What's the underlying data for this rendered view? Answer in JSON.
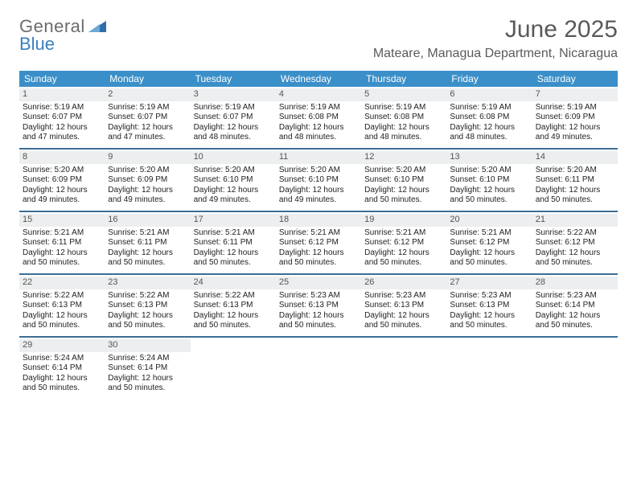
{
  "brand": {
    "first": "General",
    "second": "Blue"
  },
  "title": "June 2025",
  "location": "Mateare, Managua Department, Nicaragua",
  "colors": {
    "header_bg": "#3b8fc8",
    "rule": "#3a6d95",
    "daynum_bg": "#eceeef",
    "text": "#333333",
    "logo_gray": "#6c6c6c",
    "logo_blue": "#3a7fbf"
  },
  "day_names": [
    "Sunday",
    "Monday",
    "Tuesday",
    "Wednesday",
    "Thursday",
    "Friday",
    "Saturday"
  ],
  "weeks": [
    [
      {
        "n": "1",
        "sunrise": "5:19 AM",
        "sunset": "6:07 PM",
        "daylight": "12 hours and 47 minutes."
      },
      {
        "n": "2",
        "sunrise": "5:19 AM",
        "sunset": "6:07 PM",
        "daylight": "12 hours and 47 minutes."
      },
      {
        "n": "3",
        "sunrise": "5:19 AM",
        "sunset": "6:07 PM",
        "daylight": "12 hours and 48 minutes."
      },
      {
        "n": "4",
        "sunrise": "5:19 AM",
        "sunset": "6:08 PM",
        "daylight": "12 hours and 48 minutes."
      },
      {
        "n": "5",
        "sunrise": "5:19 AM",
        "sunset": "6:08 PM",
        "daylight": "12 hours and 48 minutes."
      },
      {
        "n": "6",
        "sunrise": "5:19 AM",
        "sunset": "6:08 PM",
        "daylight": "12 hours and 48 minutes."
      },
      {
        "n": "7",
        "sunrise": "5:19 AM",
        "sunset": "6:09 PM",
        "daylight": "12 hours and 49 minutes."
      }
    ],
    [
      {
        "n": "8",
        "sunrise": "5:20 AM",
        "sunset": "6:09 PM",
        "daylight": "12 hours and 49 minutes."
      },
      {
        "n": "9",
        "sunrise": "5:20 AM",
        "sunset": "6:09 PM",
        "daylight": "12 hours and 49 minutes."
      },
      {
        "n": "10",
        "sunrise": "5:20 AM",
        "sunset": "6:10 PM",
        "daylight": "12 hours and 49 minutes."
      },
      {
        "n": "11",
        "sunrise": "5:20 AM",
        "sunset": "6:10 PM",
        "daylight": "12 hours and 49 minutes."
      },
      {
        "n": "12",
        "sunrise": "5:20 AM",
        "sunset": "6:10 PM",
        "daylight": "12 hours and 50 minutes."
      },
      {
        "n": "13",
        "sunrise": "5:20 AM",
        "sunset": "6:10 PM",
        "daylight": "12 hours and 50 minutes."
      },
      {
        "n": "14",
        "sunrise": "5:20 AM",
        "sunset": "6:11 PM",
        "daylight": "12 hours and 50 minutes."
      }
    ],
    [
      {
        "n": "15",
        "sunrise": "5:21 AM",
        "sunset": "6:11 PM",
        "daylight": "12 hours and 50 minutes."
      },
      {
        "n": "16",
        "sunrise": "5:21 AM",
        "sunset": "6:11 PM",
        "daylight": "12 hours and 50 minutes."
      },
      {
        "n": "17",
        "sunrise": "5:21 AM",
        "sunset": "6:11 PM",
        "daylight": "12 hours and 50 minutes."
      },
      {
        "n": "18",
        "sunrise": "5:21 AM",
        "sunset": "6:12 PM",
        "daylight": "12 hours and 50 minutes."
      },
      {
        "n": "19",
        "sunrise": "5:21 AM",
        "sunset": "6:12 PM",
        "daylight": "12 hours and 50 minutes."
      },
      {
        "n": "20",
        "sunrise": "5:21 AM",
        "sunset": "6:12 PM",
        "daylight": "12 hours and 50 minutes."
      },
      {
        "n": "21",
        "sunrise": "5:22 AM",
        "sunset": "6:12 PM",
        "daylight": "12 hours and 50 minutes."
      }
    ],
    [
      {
        "n": "22",
        "sunrise": "5:22 AM",
        "sunset": "6:13 PM",
        "daylight": "12 hours and 50 minutes."
      },
      {
        "n": "23",
        "sunrise": "5:22 AM",
        "sunset": "6:13 PM",
        "daylight": "12 hours and 50 minutes."
      },
      {
        "n": "24",
        "sunrise": "5:22 AM",
        "sunset": "6:13 PM",
        "daylight": "12 hours and 50 minutes."
      },
      {
        "n": "25",
        "sunrise": "5:23 AM",
        "sunset": "6:13 PM",
        "daylight": "12 hours and 50 minutes."
      },
      {
        "n": "26",
        "sunrise": "5:23 AM",
        "sunset": "6:13 PM",
        "daylight": "12 hours and 50 minutes."
      },
      {
        "n": "27",
        "sunrise": "5:23 AM",
        "sunset": "6:13 PM",
        "daylight": "12 hours and 50 minutes."
      },
      {
        "n": "28",
        "sunrise": "5:23 AM",
        "sunset": "6:14 PM",
        "daylight": "12 hours and 50 minutes."
      }
    ],
    [
      {
        "n": "29",
        "sunrise": "5:24 AM",
        "sunset": "6:14 PM",
        "daylight": "12 hours and 50 minutes."
      },
      {
        "n": "30",
        "sunrise": "5:24 AM",
        "sunset": "6:14 PM",
        "daylight": "12 hours and 50 minutes."
      },
      null,
      null,
      null,
      null,
      null
    ]
  ],
  "labels": {
    "sunrise": "Sunrise: ",
    "sunset": "Sunset: ",
    "daylight": "Daylight: "
  }
}
